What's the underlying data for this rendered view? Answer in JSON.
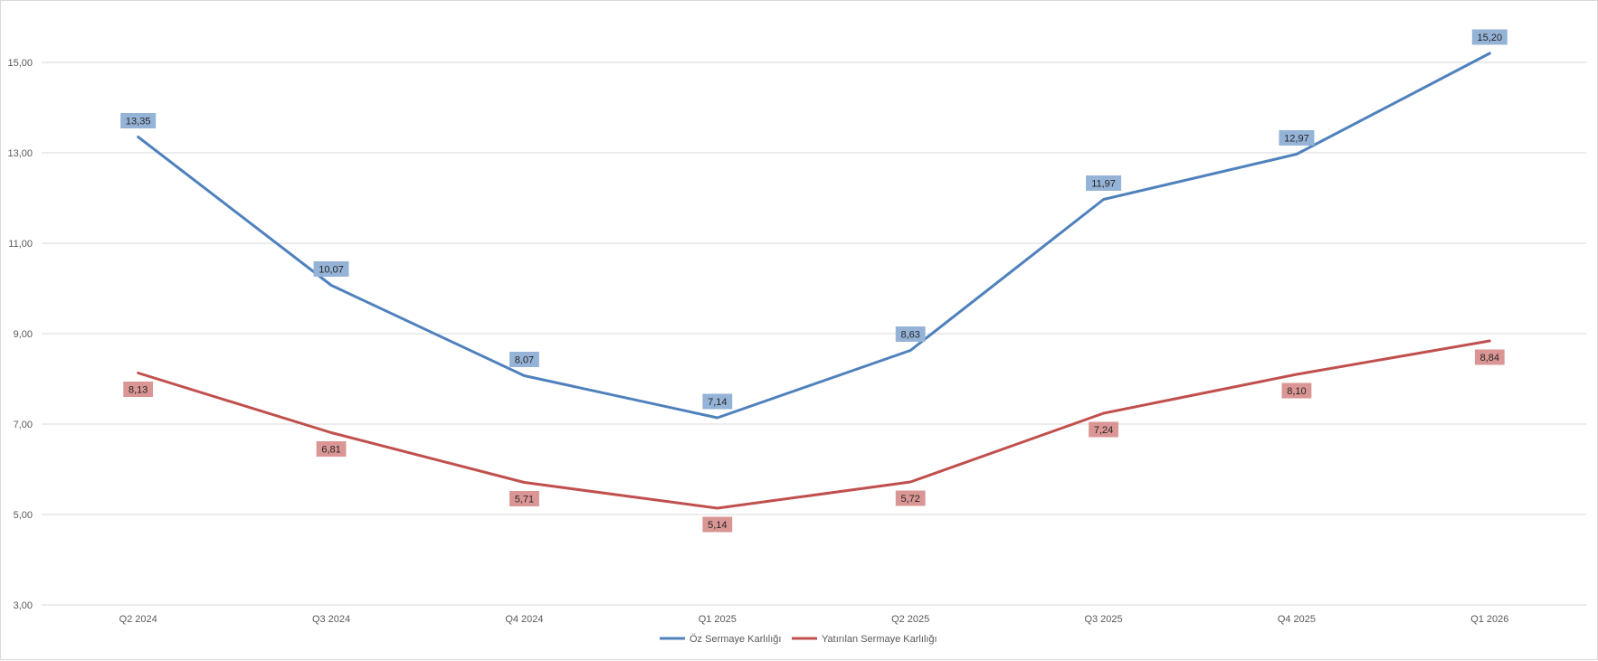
{
  "chart_data": {
    "type": "line",
    "title": "",
    "xlabel": "",
    "ylabel": "",
    "categories": [
      "Q2 2024",
      "Q3 2024",
      "Q4 2024",
      "Q1 2025",
      "Q2 2025",
      "Q3 2025",
      "Q4 2025",
      "Q1 2026"
    ],
    "ylim": [
      3,
      16
    ],
    "yticks": [
      3,
      5,
      7,
      9,
      11,
      13,
      15
    ],
    "ytick_labels": [
      "3,00",
      "5,00",
      "7,00",
      "9,00",
      "11,00",
      "13,00",
      "15,00"
    ],
    "grid": true,
    "legend_position": "bottom",
    "series": [
      {
        "name": "Öz Sermaye Karlılığı",
        "color": "#4f81bd",
        "label_bg": "#95b3d7",
        "label_position": "above",
        "values": [
          13.35,
          10.07,
          8.07,
          7.14,
          8.63,
          11.97,
          12.97,
          15.2
        ],
        "labels": [
          "13,35",
          "10,07",
          "8,07",
          "7,14",
          "8,63",
          "11,97",
          "12,97",
          "15,20"
        ]
      },
      {
        "name": "Yatırılan Sermaye Karlılığı",
        "color": "#c0504d",
        "label_bg": "#da9694",
        "label_position": "below",
        "values": [
          8.13,
          6.81,
          5.71,
          5.14,
          5.72,
          7.24,
          8.1,
          8.84
        ],
        "labels": [
          "8,13",
          "6,81",
          "5,71",
          "5,14",
          "5,72",
          "7,24",
          "8,10",
          "8,84"
        ]
      }
    ]
  }
}
